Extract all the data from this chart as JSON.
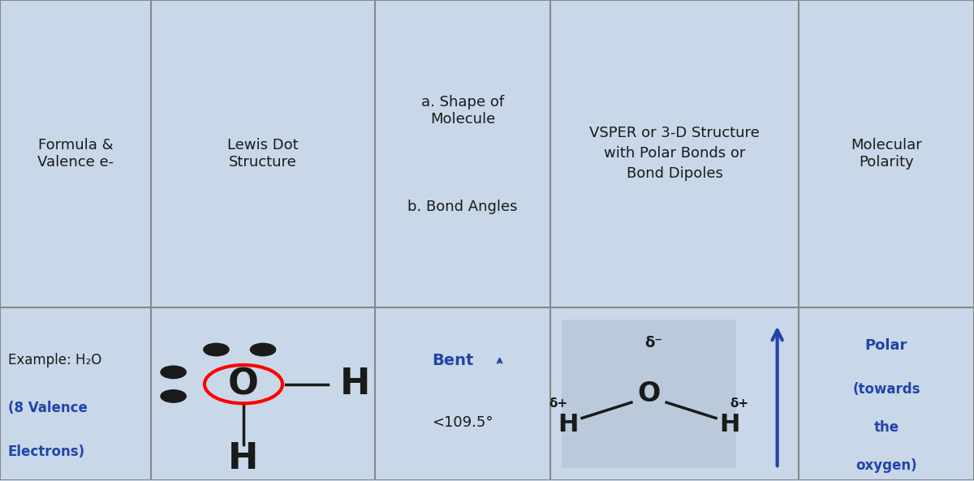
{
  "bg_color": "#c8d8e8",
  "text_color_black": "#1a1a1a",
  "text_color_blue": "#2244aa",
  "grid_color": "#888888",
  "col_boundaries": [
    0.0,
    0.155,
    0.385,
    0.565,
    0.82,
    1.0
  ],
  "row_boundaries": [
    0.0,
    0.36,
    1.0
  ],
  "header_col1": "Formula &\nValence e-",
  "header_col2": "Lewis Dot\nStructure",
  "header_col3a": "a. Shape of\nMolecule",
  "header_col3b": "b. Bond Angles",
  "header_col4": "VSPER or 3-D Structure\nwith Polar Bonds or\nBond Dipoles",
  "header_col5": "Molecular\nPolarity",
  "data_col1_l1": "Example: H₂O",
  "data_col1_l2": "(8 Valence",
  "data_col1_l3": "Electrons)",
  "data_col3_l1": "Bent",
  "data_col3_l2": "<109.5°",
  "data_col5_l1": "Polar",
  "data_col5_l2": "(towards",
  "data_col5_l3": "the",
  "data_col5_l4": "oxygen)",
  "delta_minus": "δ⁻",
  "delta_plus": "δ+"
}
